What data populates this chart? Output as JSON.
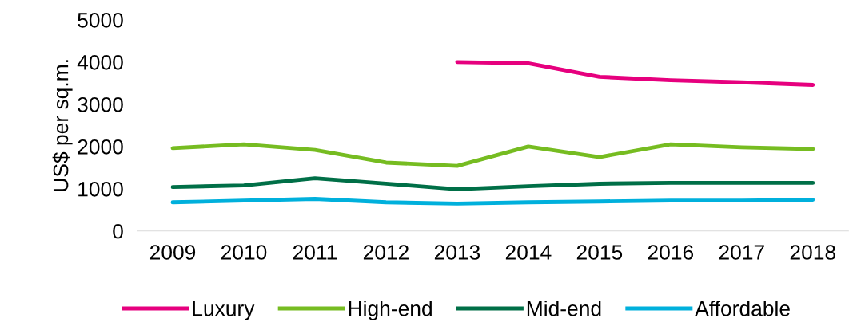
{
  "chart_data": {
    "type": "line",
    "ylabel": "US$ per sq.m.",
    "categories": [
      "2009",
      "2010",
      "2011",
      "2012",
      "2013",
      "2014",
      "2015",
      "2016",
      "2017",
      "2018"
    ],
    "series": [
      {
        "name": "Luxury",
        "color": "#e6007e",
        "values": [
          null,
          null,
          null,
          null,
          4000,
          3970,
          3650,
          3570,
          3520,
          3460
        ]
      },
      {
        "name": "High-end",
        "color": "#76bc21",
        "values": [
          1960,
          2050,
          1920,
          1620,
          1540,
          2000,
          1750,
          2050,
          1980,
          1940
        ]
      },
      {
        "name": "Mid-end",
        "color": "#006f47",
        "values": [
          1040,
          1080,
          1250,
          1120,
          990,
          1060,
          1120,
          1140,
          1140,
          1140
        ]
      },
      {
        "name": "Affordable",
        "color": "#00b0dc",
        "values": [
          680,
          720,
          760,
          680,
          650,
          680,
          700,
          720,
          720,
          740
        ]
      }
    ],
    "ylim": [
      0,
      5000
    ],
    "yticks": [
      0,
      1000,
      2000,
      3000,
      4000,
      5000
    ],
    "grid": false,
    "legend": "bottom",
    "marker": "none",
    "line_style": "solid"
  }
}
